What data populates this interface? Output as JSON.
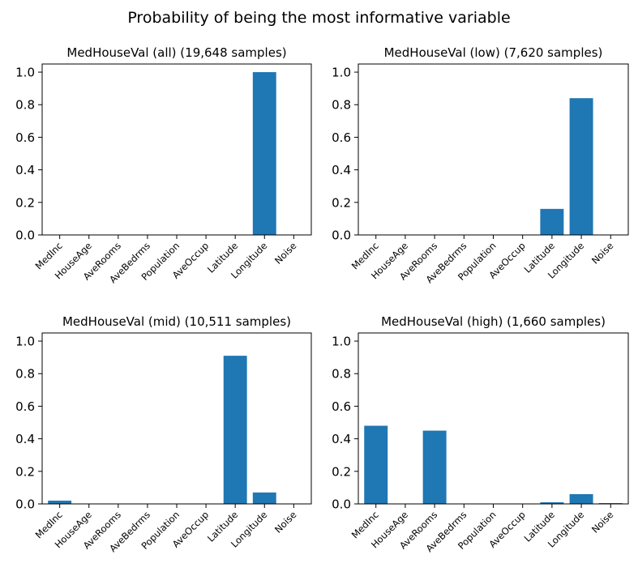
{
  "figure": {
    "title": "Probability of being the most informative variable",
    "bar_color": "#1f77b4"
  },
  "chart_data": [
    {
      "type": "bar",
      "title": "MedHouseVal (all) (19,648 samples)",
      "categories": [
        "MedInc",
        "HouseAge",
        "AveRooms",
        "AveBedrms",
        "Population",
        "AveOccup",
        "Latitude",
        "Longitude",
        "Noise"
      ],
      "values": [
        0,
        0,
        0,
        0,
        0,
        0,
        0,
        1.0,
        0
      ],
      "ylim": [
        0,
        1.05
      ],
      "yticks": [
        "0.0",
        "0.2",
        "0.4",
        "0.6",
        "0.8",
        "1.0"
      ]
    },
    {
      "type": "bar",
      "title": "MedHouseVal (low) (7,620 samples)",
      "categories": [
        "MedInc",
        "HouseAge",
        "AveRooms",
        "AveBedrms",
        "Population",
        "AveOccup",
        "Latitude",
        "Longitude",
        "Noise"
      ],
      "values": [
        0,
        0,
        0,
        0,
        0,
        0,
        0.16,
        0.84,
        0
      ],
      "ylim": [
        0,
        1.05
      ],
      "yticks": [
        "0.0",
        "0.2",
        "0.4",
        "0.6",
        "0.8",
        "1.0"
      ]
    },
    {
      "type": "bar",
      "title": "MedHouseVal (mid) (10,511 samples)",
      "categories": [
        "MedInc",
        "HouseAge",
        "AveRooms",
        "AveBedrms",
        "Population",
        "AveOccup",
        "Latitude",
        "Longitude",
        "Noise"
      ],
      "values": [
        0.02,
        0,
        0,
        0,
        0,
        0,
        0.91,
        0.07,
        0
      ],
      "ylim": [
        0,
        1.05
      ],
      "yticks": [
        "0.0",
        "0.2",
        "0.4",
        "0.6",
        "0.8",
        "1.0"
      ]
    },
    {
      "type": "bar",
      "title": "MedHouseVal (high) (1,660 samples)",
      "categories": [
        "MedInc",
        "HouseAge",
        "AveRooms",
        "AveBedrms",
        "Population",
        "AveOccup",
        "Latitude",
        "Longitude",
        "Noise"
      ],
      "values": [
        0.48,
        0,
        0.45,
        0,
        0,
        0,
        0.01,
        0.06,
        0.005
      ],
      "ylim": [
        0,
        1.05
      ],
      "yticks": [
        "0.0",
        "0.2",
        "0.4",
        "0.6",
        "0.8",
        "1.0"
      ]
    }
  ]
}
